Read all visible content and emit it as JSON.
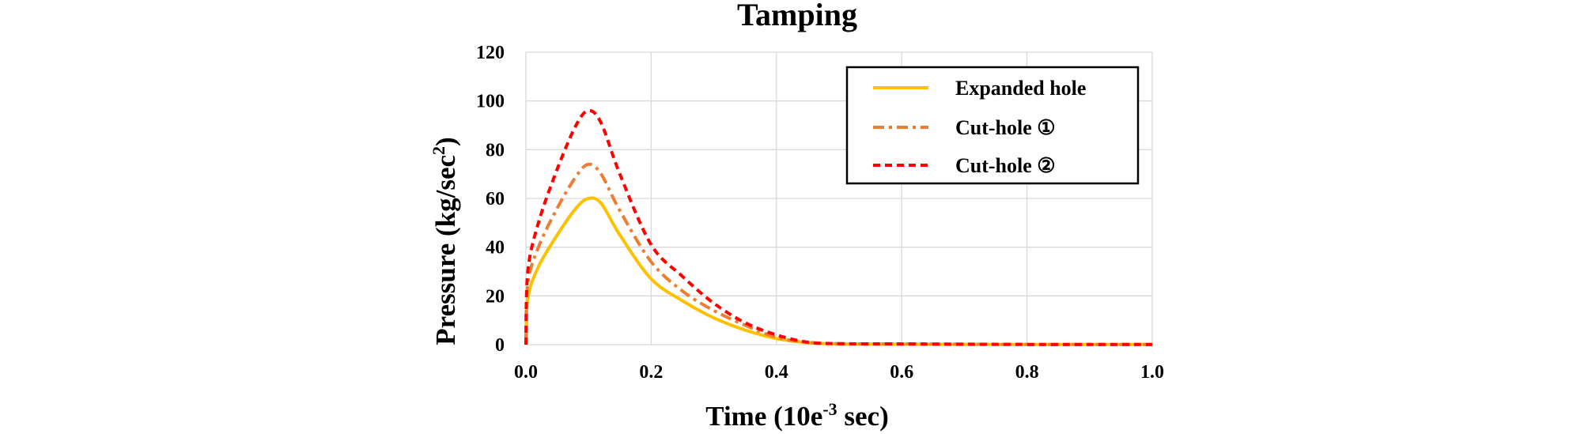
{
  "chart_data": {
    "type": "line",
    "title": "Tamping",
    "xlabel": {
      "main": "Time (10e",
      "sup": "-3",
      "end": " sec)"
    },
    "ylabel": {
      "main": "Pressure (kg/sec",
      "sup": "2",
      "end": ")"
    },
    "xlim": [
      0,
      1.0
    ],
    "ylim": [
      0,
      120
    ],
    "xticks": [
      "0.0",
      "0.2",
      "0.4",
      "0.6",
      "0.8",
      "1.0"
    ],
    "yticks": [
      "0",
      "20",
      "40",
      "60",
      "80",
      "100",
      "120"
    ],
    "grid": true,
    "legend_position": "top-right",
    "series": [
      {
        "name": "Expanded hole",
        "color": "#FFC000",
        "style": "solid",
        "x": [
          0,
          0.003,
          0.02,
          0.05,
          0.08,
          0.1,
          0.12,
          0.15,
          0.2,
          0.25,
          0.3,
          0.35,
          0.4,
          0.45,
          0.5,
          0.6,
          0.7,
          0.8,
          0.9,
          1.0
        ],
        "y": [
          0,
          19,
          32,
          45,
          56,
          60,
          58,
          45,
          27,
          18,
          11,
          6,
          2.5,
          0.8,
          0.3,
          0.2,
          0.1,
          0.1,
          0.1,
          0.1
        ]
      },
      {
        "name": "Cut-hole ①",
        "color": "#ED7D31",
        "style": "dashdot",
        "x": [
          0,
          0.003,
          0.02,
          0.05,
          0.08,
          0.1,
          0.12,
          0.15,
          0.2,
          0.25,
          0.3,
          0.35,
          0.4,
          0.45,
          0.5,
          0.6,
          0.7,
          0.8,
          0.9,
          1.0
        ],
        "y": [
          0,
          25,
          40,
          56,
          69,
          74,
          70,
          55,
          34,
          22,
          14,
          8,
          3,
          1,
          0.4,
          0.3,
          0.2,
          0.1,
          0.1,
          0.1
        ]
      },
      {
        "name": "Cut-hole ②",
        "color": "#FF0000",
        "style": "dashed",
        "x": [
          0,
          0.003,
          0.02,
          0.05,
          0.08,
          0.1,
          0.12,
          0.15,
          0.2,
          0.25,
          0.3,
          0.35,
          0.4,
          0.45,
          0.5,
          0.6,
          0.7,
          0.8,
          0.9,
          1.0
        ],
        "y": [
          0,
          30,
          50,
          72,
          90,
          96,
          91,
          70,
          41,
          28,
          17,
          9,
          4,
          1,
          0.4,
          0.3,
          0.2,
          0.1,
          0.1,
          0.1
        ]
      }
    ]
  }
}
